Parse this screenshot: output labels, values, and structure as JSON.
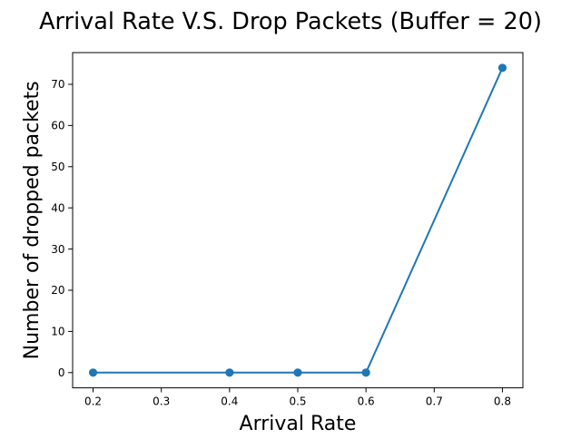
{
  "chart_data": {
    "type": "line",
    "title": "Arrival Rate V.S. Drop Packets (Buffer = 20)",
    "xlabel": "Arrival Rate",
    "ylabel": "Number of dropped packets",
    "x": [
      0.2,
      0.4,
      0.5,
      0.6,
      0.8
    ],
    "series": [
      {
        "values": [
          0,
          0,
          0,
          0,
          74
        ],
        "color": "#1f77b4",
        "marker": "circle"
      }
    ],
    "xlim": [
      0.17,
      0.83
    ],
    "ylim": [
      -3.7,
      77.7
    ],
    "xticks": [
      0.2,
      0.3,
      0.4,
      0.5,
      0.6,
      0.7,
      0.8
    ],
    "xtick_labels": [
      "0.2",
      "0.3",
      "0.4",
      "0.5",
      "0.6",
      "0.7",
      "0.8"
    ],
    "yticks": [
      0,
      10,
      20,
      30,
      40,
      50,
      60,
      70
    ],
    "ytick_labels": [
      "0",
      "10",
      "20",
      "30",
      "40",
      "50",
      "60",
      "70"
    ],
    "grid": false,
    "legend": "none"
  }
}
